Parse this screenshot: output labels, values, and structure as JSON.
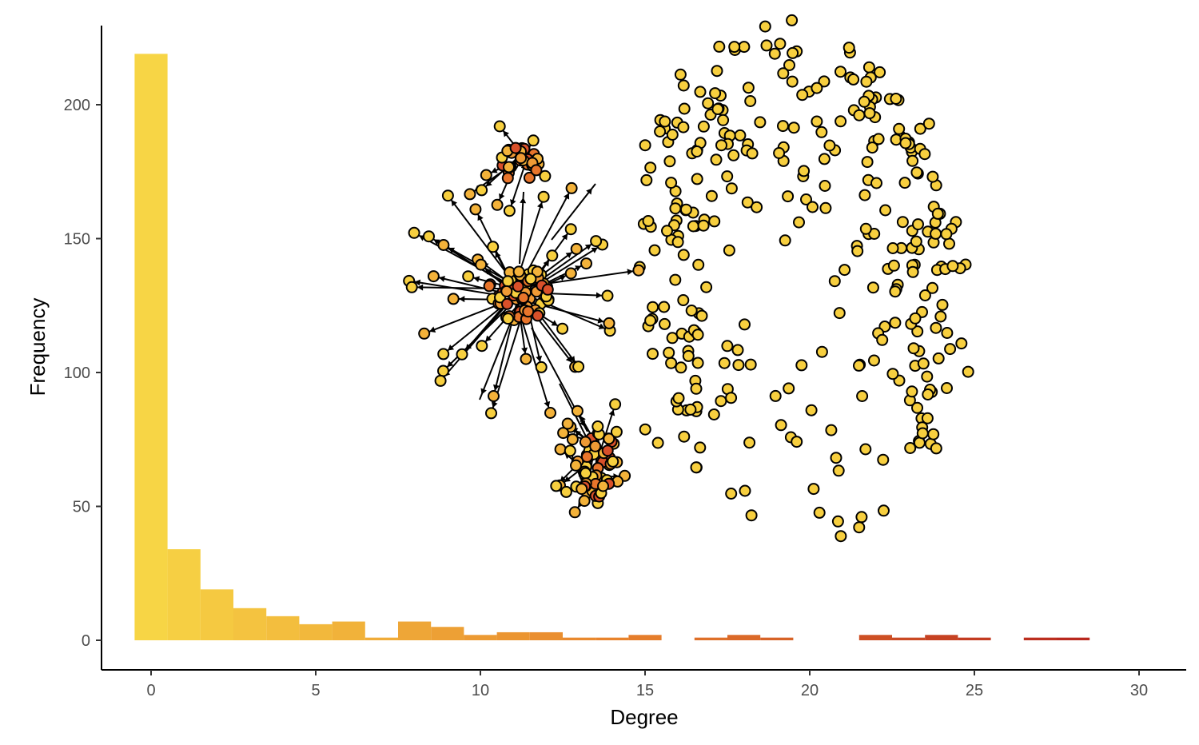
{
  "chart_data": {
    "type": "bar",
    "xlabel": "Degree",
    "ylabel": "Frequency",
    "xlim": [
      -0.9,
      31.5
    ],
    "ylim": [
      -11,
      230
    ],
    "xticks": [
      0,
      5,
      10,
      15,
      20,
      25,
      30
    ],
    "yticks": [
      0,
      50,
      100,
      150,
      200
    ],
    "grid": false,
    "legend": "none",
    "bins": [
      {
        "degree": 0,
        "count": 219
      },
      {
        "degree": 1,
        "count": 34
      },
      {
        "degree": 2,
        "count": 19
      },
      {
        "degree": 3,
        "count": 12
      },
      {
        "degree": 4,
        "count": 9
      },
      {
        "degree": 5,
        "count": 6
      },
      {
        "degree": 6,
        "count": 7
      },
      {
        "degree": 7,
        "count": 1
      },
      {
        "degree": 8,
        "count": 7
      },
      {
        "degree": 9,
        "count": 5
      },
      {
        "degree": 10,
        "count": 2
      },
      {
        "degree": 11,
        "count": 3
      },
      {
        "degree": 12,
        "count": 3
      },
      {
        "degree": 13,
        "count": 1
      },
      {
        "degree": 14,
        "count": 1
      },
      {
        "degree": 15,
        "count": 2
      },
      {
        "degree": 16,
        "count": 0
      },
      {
        "degree": 17,
        "count": 1
      },
      {
        "degree": 18,
        "count": 2
      },
      {
        "degree": 19,
        "count": 1
      },
      {
        "degree": 20,
        "count": 0
      },
      {
        "degree": 21,
        "count": 0
      },
      {
        "degree": 22,
        "count": 2
      },
      {
        "degree": 23,
        "count": 1
      },
      {
        "degree": 24,
        "count": 2
      },
      {
        "degree": 25,
        "count": 1
      },
      {
        "degree": 26,
        "count": 0
      },
      {
        "degree": 27,
        "count": 1
      },
      {
        "degree": 28,
        "count": 1
      }
    ],
    "palette": {
      "low": "#f7d545",
      "mid": "#e8832c",
      "high": "#b9281e"
    },
    "inset_network": {
      "description_only": false,
      "node_stroke": "#000000",
      "edge_color": "#000000"
    }
  }
}
